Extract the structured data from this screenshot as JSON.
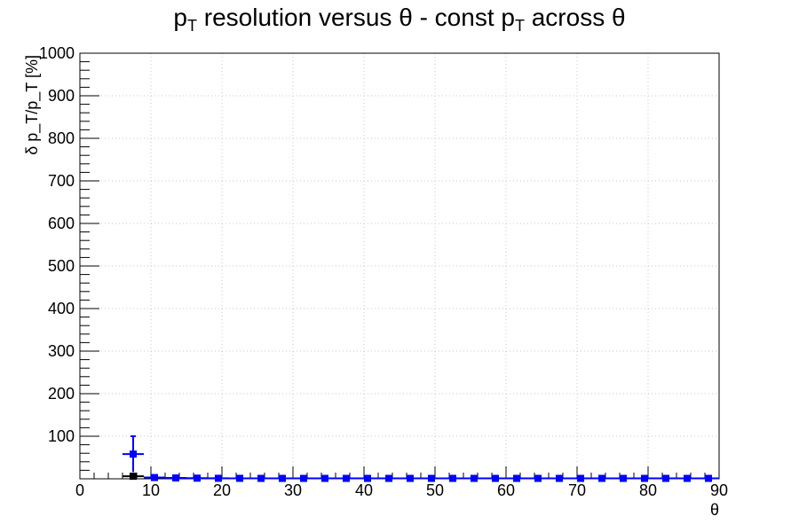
{
  "chart_data": {
    "type": "scatter",
    "title": "p_T resolution versus θ - const p_T across θ",
    "title_parts": {
      "p": "p",
      "T": "T",
      "middle": " resolution versus θ - const p",
      "end": " across θ"
    },
    "xlabel": "θ",
    "ylabel": "δ p_T/p_T [%]",
    "xlim": [
      0,
      90
    ],
    "ylim": [
      0,
      1000
    ],
    "x_ticks": [
      0,
      10,
      20,
      30,
      40,
      50,
      60,
      70,
      80,
      90
    ],
    "y_ticks": [
      100,
      200,
      300,
      400,
      500,
      600,
      700,
      800,
      900,
      1000
    ],
    "grid": true,
    "series": [
      {
        "color": "#0000ff",
        "x_err": 1.5,
        "points": [
          {
            "x": 7.5,
            "y": 58,
            "yerr": 42
          },
          {
            "x": 10.5,
            "y": 3,
            "yerr": 1
          },
          {
            "x": 13.5,
            "y": 2,
            "yerr": 1
          },
          {
            "x": 16.5,
            "y": 1.5,
            "yerr": 0.5
          },
          {
            "x": 19.5,
            "y": 1.2,
            "yerr": 0.5
          },
          {
            "x": 22.5,
            "y": 1.1,
            "yerr": 0.5
          },
          {
            "x": 25.5,
            "y": 1,
            "yerr": 0.5
          },
          {
            "x": 28.5,
            "y": 1,
            "yerr": 0.5
          },
          {
            "x": 31.5,
            "y": 1,
            "yerr": 0.5
          },
          {
            "x": 34.5,
            "y": 1,
            "yerr": 0.5
          },
          {
            "x": 37.5,
            "y": 1,
            "yerr": 0.5
          },
          {
            "x": 40.5,
            "y": 1,
            "yerr": 0.5
          },
          {
            "x": 43.5,
            "y": 1,
            "yerr": 0.5
          },
          {
            "x": 46.5,
            "y": 1,
            "yerr": 0.5
          },
          {
            "x": 49.5,
            "y": 1,
            "yerr": 0.5
          },
          {
            "x": 52.5,
            "y": 1,
            "yerr": 0.5
          },
          {
            "x": 55.5,
            "y": 1,
            "yerr": 0.5
          },
          {
            "x": 58.5,
            "y": 1,
            "yerr": 0.5
          },
          {
            "x": 61.5,
            "y": 1,
            "yerr": 0.5
          },
          {
            "x": 64.5,
            "y": 1,
            "yerr": 0.5
          },
          {
            "x": 67.5,
            "y": 1,
            "yerr": 0.5
          },
          {
            "x": 70.5,
            "y": 1,
            "yerr": 0.5
          },
          {
            "x": 73.5,
            "y": 1,
            "yerr": 0.5
          },
          {
            "x": 76.5,
            "y": 1,
            "yerr": 0.5
          },
          {
            "x": 79.5,
            "y": 1,
            "yerr": 0.5
          },
          {
            "x": 82.5,
            "y": 1,
            "yerr": 0.5
          },
          {
            "x": 85.5,
            "y": 1,
            "yerr": 0.5
          },
          {
            "x": 88.5,
            "y": 1,
            "yerr": 0.5
          }
        ]
      },
      {
        "color": "#000000",
        "x_err": 1.5,
        "points": [
          {
            "x": 7.5,
            "y": 6,
            "yerr": 2
          }
        ]
      }
    ]
  }
}
